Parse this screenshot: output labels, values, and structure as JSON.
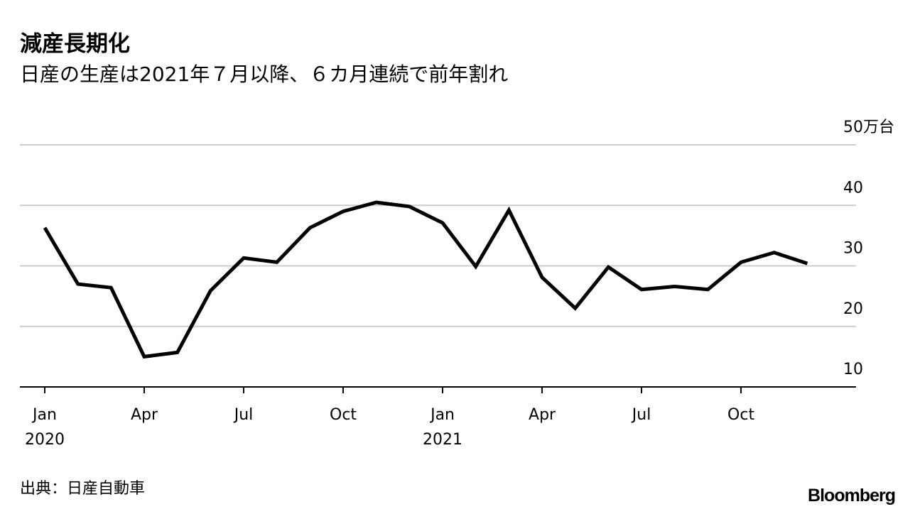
{
  "chart_data": {
    "type": "line",
    "title": "減産長期化",
    "subtitle": "日産の生産は2021年７月以降、６カ月連続で前年割れ",
    "source": "出典：日産自動車",
    "brand": "Bloomberg",
    "categories": [
      "Jan 2020",
      null,
      null,
      "Apr",
      null,
      null,
      "Jul",
      null,
      null,
      "Oct",
      null,
      null,
      "Jan 2021",
      null,
      null,
      "Apr",
      null,
      null,
      "Jul",
      null,
      null,
      "Oct",
      null,
      null
    ],
    "series": [
      {
        "name": "日産の生産",
        "color": "#000000",
        "values": [
          36.3,
          27.0,
          26.4,
          15.0,
          15.7,
          25.9,
          31.3,
          30.6,
          36.3,
          39.0,
          40.5,
          39.8,
          37.1,
          29.9,
          39.2,
          28.1,
          23.0,
          29.8,
          26.1,
          26.6,
          26.1,
          30.6,
          32.2,
          30.4
        ]
      }
    ],
    "ylim": [
      10,
      50
    ],
    "yticks": [
      10,
      20,
      30,
      40,
      {
        "value": 50,
        "label": "50万台"
      }
    ],
    "grid": true
  }
}
